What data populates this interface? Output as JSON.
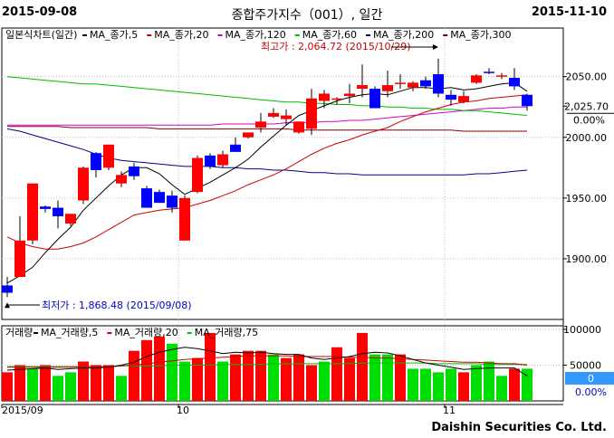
{
  "header": {
    "start_date": "2015-09-08",
    "title": "종합주가지수（001）, 일간",
    "end_date": "2015-11-10"
  },
  "footer": {
    "brand": "Daishin Securities Co. Ltd."
  },
  "colors": {
    "up": "#ff0000",
    "down": "#0000ff",
    "ma5": "#000000",
    "ma20": "#cc0000",
    "ma60": "#00bb00",
    "ma120": "#d000d0",
    "ma200": "#000088",
    "ma300": "#800000",
    "vol_up": "#ff0000",
    "vol_down": "#00dd00",
    "badge_bg": "#3399ff"
  },
  "chart_data": [
    {
      "type": "candlestick",
      "legend_label": "일본식차트(일간)",
      "legend": [
        {
          "label": "MA_종가,5",
          "color": "#000000"
        },
        {
          "label": "MA_종가,20",
          "color": "#cc0000"
        },
        {
          "label": "MA_종가,120",
          "color": "#d000d0"
        },
        {
          "label": "MA_종가,60",
          "color": "#00bb00"
        },
        {
          "label": "MA_종가,200",
          "color": "#000088"
        },
        {
          "label": "MA_종가,300",
          "color": "#800000"
        }
      ],
      "ylim": [
        1850,
        2090
      ],
      "yticks": [
        1900,
        1950,
        2000,
        2050
      ],
      "ytick_labels": [
        "1900.00",
        "1950.00",
        "2000.00",
        "2050.00"
      ],
      "current_value": "2,025.70",
      "change_pct": "0.00%",
      "annotations": {
        "high": {
          "label": "최고가 : 2,064.72 (2015/10/29)",
          "value": 2064.72,
          "index": 34
        },
        "low": {
          "label": "최저가 : 1,868.48 (2015/09/08)",
          "value": 1868.48,
          "index": 0
        }
      },
      "ohlc": [
        [
          1878,
          1885,
          1868.48,
          1872
        ],
        [
          1885,
          1935,
          1885,
          1915
        ],
        [
          1915,
          1962,
          1912,
          1962
        ],
        [
          1943,
          1944,
          1938,
          1941
        ],
        [
          1942,
          1948,
          1925,
          1935
        ],
        [
          1929,
          1937,
          1927,
          1937
        ],
        [
          1948,
          1976,
          1945,
          1975
        ],
        [
          1987,
          1988,
          1967,
          1973
        ],
        [
          1975,
          1994,
          1973,
          1994
        ],
        [
          1962,
          1972,
          1959,
          1969
        ],
        [
          1976,
          1979,
          1965,
          1968
        ],
        [
          1958,
          1960,
          1942,
          1942
        ],
        [
          1955,
          1957,
          1947,
          1946
        ],
        [
          1952,
          1956,
          1938,
          1942
        ],
        [
          1915,
          1952,
          1915,
          1950
        ],
        [
          1955,
          1985,
          1954,
          1983
        ],
        [
          1985,
          1987,
          1974,
          1976
        ],
        [
          1977,
          1989,
          1975,
          1986
        ],
        [
          1994,
          2000,
          1988,
          1988
        ],
        [
          2000,
          2004,
          1999,
          2004
        ],
        [
          2008,
          2020,
          2004,
          2013
        ],
        [
          2017,
          2024,
          2016,
          2020
        ],
        [
          2015,
          2023,
          2010,
          2018
        ],
        [
          2004,
          2013,
          2003,
          2013
        ],
        [
          2007,
          2040,
          2002,
          2032
        ],
        [
          2030,
          2039,
          2024,
          2036
        ],
        [
          2031,
          2033,
          2027,
          2032
        ],
        [
          2034,
          2044,
          2028,
          2036
        ],
        [
          2040,
          2060,
          2033,
          2043
        ],
        [
          2040,
          2042,
          2024,
          2024
        ],
        [
          2038,
          2055,
          2033,
          2043
        ],
        [
          2044,
          2052,
          2040,
          2045
        ],
        [
          2041,
          2046,
          2038,
          2045
        ],
        [
          2047,
          2050,
          2040,
          2042
        ],
        [
          2052,
          2064.72,
          2033,
          2036
        ],
        [
          2035,
          2039,
          2026,
          2031
        ],
        [
          2029,
          2038,
          2028,
          2034
        ],
        [
          2045,
          2052,
          2044,
          2051
        ],
        [
          2054,
          2057,
          2052,
          2053
        ],
        [
          2050,
          2053,
          2048,
          2051
        ],
        [
          2049,
          2057,
          2039,
          2042
        ],
        [
          2035,
          2036,
          2022,
          2025.7
        ]
      ],
      "ma5": [
        1880,
        1886,
        1893,
        1905,
        1916,
        1926,
        1940,
        1950,
        1960,
        1969,
        1975,
        1975,
        1970,
        1961,
        1953,
        1958,
        1963,
        1969,
        1975,
        1982,
        1992,
        2001,
        2010,
        2018,
        2022,
        2026,
        2030,
        2033,
        2035,
        2036,
        2035,
        2038,
        2041,
        2041,
        2040,
        2041,
        2039,
        2040,
        2042,
        2044,
        2045,
        2038
      ],
      "ma20": [
        1918,
        1913,
        1910,
        1908,
        1908,
        1910,
        1913,
        1918,
        1924,
        1930,
        1936,
        1938,
        1940,
        1941,
        1942,
        1945,
        1948,
        1952,
        1956,
        1961,
        1965,
        1969,
        1974,
        1980,
        1986,
        1991,
        1995,
        1998,
        2002,
        2005,
        2008,
        2013,
        2017,
        2021,
        2024,
        2027,
        2029,
        2030,
        2032,
        2033,
        2034,
        2035
      ],
      "ma60": [
        2050,
        2049,
        2048,
        2047,
        2046,
        2045,
        2044,
        2044,
        2043,
        2042,
        2041,
        2040,
        2039,
        2038,
        2037,
        2036,
        2035,
        2034,
        2033,
        2032,
        2031,
        2030,
        2029,
        2029,
        2028,
        2028,
        2027,
        2027,
        2026,
        2026,
        2025,
        2025,
        2024,
        2024,
        2023,
        2023,
        2022,
        2022,
        2021,
        2020,
        2019,
        2018
      ],
      "ma120": [
        2010,
        2010,
        2010,
        2010,
        2010,
        2010,
        2010,
        2010,
        2010,
        2010,
        2010,
        2010,
        2010,
        2010,
        2010,
        2010,
        2010,
        2011,
        2011,
        2011,
        2011,
        2011,
        2012,
        2012,
        2012,
        2013,
        2013,
        2014,
        2014,
        2015,
        2016,
        2017,
        2018,
        2019,
        2020,
        2021,
        2022,
        2023,
        2024,
        2024,
        2025,
        2025
      ],
      "ma200": [
        2007,
        2005,
        2002,
        1999,
        1996,
        1993,
        1990,
        1986,
        1983,
        1981,
        1980,
        1979,
        1978,
        1977,
        1976,
        1976,
        1976,
        1975,
        1975,
        1974,
        1974,
        1973,
        1973,
        1972,
        1971,
        1971,
        1970,
        1970,
        1969,
        1969,
        1969,
        1969,
        1969,
        1969,
        1969,
        1969,
        1969,
        1970,
        1970,
        1971,
        1972,
        1973
      ],
      "ma300": [
        2009,
        2009,
        2009,
        2009,
        2009,
        2008,
        2008,
        2008,
        2008,
        2008,
        2008,
        2008,
        2007,
        2007,
        2007,
        2007,
        2007,
        2007,
        2007,
        2007,
        2007,
        2007,
        2007,
        2006,
        2006,
        2006,
        2006,
        2006,
        2006,
        2006,
        2006,
        2006,
        2006,
        2006,
        2006,
        2006,
        2005,
        2005,
        2005,
        2005,
        2005,
        2005
      ]
    },
    {
      "type": "bar",
      "legend_label": "거래량",
      "legend": [
        {
          "label": "MA_거래량,5",
          "color": "#000000"
        },
        {
          "label": "MA_거래량,20",
          "color": "#cc0000"
        },
        {
          "label": "MA_거래량,75",
          "color": "#00bb00"
        }
      ],
      "ylim": [
        0,
        105000
      ],
      "yticks": [
        50000,
        100000
      ],
      "ytick_labels": [
        "50000",
        "100000"
      ],
      "current_value": "0",
      "change_pct": "0.00%",
      "values": [
        40000,
        50000,
        45000,
        50000,
        35000,
        40000,
        55000,
        50000,
        50000,
        35000,
        70000,
        85000,
        90000,
        80000,
        55000,
        60000,
        95000,
        55000,
        65000,
        70000,
        70000,
        65000,
        60000,
        65000,
        50000,
        55000,
        75000,
        60000,
        95000,
        65000,
        65000,
        65000,
        45000,
        45000,
        40000,
        45000,
        40000,
        50000,
        55000,
        35000,
        45000,
        45000
      ],
      "up": [
        true,
        true,
        false,
        true,
        false,
        false,
        true,
        true,
        true,
        false,
        true,
        true,
        true,
        false,
        false,
        true,
        true,
        false,
        true,
        true,
        true,
        false,
        true,
        true,
        true,
        false,
        true,
        true,
        true,
        false,
        false,
        true,
        false,
        false,
        false,
        false,
        true,
        false,
        false,
        false,
        true,
        false
      ],
      "ma5": [
        43000,
        44000,
        45000,
        46000,
        44000,
        45000,
        46000,
        46000,
        47000,
        50000,
        54000,
        62000,
        68000,
        72000,
        75000,
        73000,
        70000,
        66000,
        68000,
        67000,
        68000,
        66000,
        65000,
        65000,
        60000,
        58000,
        60000,
        62000,
        66000,
        68000,
        67000,
        63000,
        58000,
        53000,
        50000,
        47000,
        44000,
        45000,
        46000,
        46000,
        46000,
        35000
      ],
      "ma20": [
        47000,
        47000,
        47000,
        47000,
        47000,
        47000,
        48000,
        48000,
        48000,
        49000,
        50000,
        52000,
        54000,
        56000,
        58000,
        59000,
        60000,
        61000,
        62000,
        63000,
        63000,
        63000,
        63000,
        62000,
        62000,
        62000,
        62000,
        61000,
        61000,
        60000,
        60000,
        59000,
        58000,
        57000,
        56000,
        55000,
        54000,
        54000,
        53000,
        52000,
        52000,
        50000
      ],
      "ma75": [
        48000,
        48000,
        48000,
        48000,
        48000,
        48000,
        48000,
        48000,
        48000,
        49000,
        49000,
        49000,
        49000,
        50000,
        50000,
        50000,
        50000,
        51000,
        51000,
        51000,
        51000,
        52000,
        52000,
        52000,
        52000,
        52000,
        52000,
        52000,
        53000,
        53000,
        53000,
        53000,
        53000,
        53000,
        52000,
        52000,
        52000,
        52000,
        51000,
        51000,
        51000,
        51000
      ]
    }
  ],
  "x_axis": {
    "labels": [
      {
        "text": "2015/09",
        "index": 0
      },
      {
        "text": "10",
        "index": 14
      },
      {
        "text": "11",
        "index": 35
      }
    ]
  }
}
